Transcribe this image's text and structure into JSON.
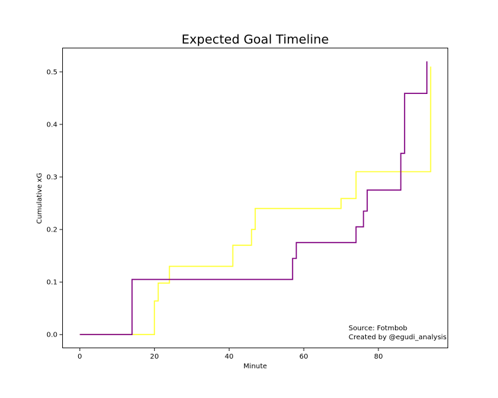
{
  "chart_data": {
    "type": "line",
    "step": "post",
    "title": "Expected Goal Timeline",
    "xlabel": "Minute",
    "ylabel": "Cumulative xG",
    "xlim": [
      -4.7,
      98.7
    ],
    "ylim": [
      -0.026,
      0.546
    ],
    "xticks": [
      0,
      20,
      40,
      60,
      80
    ],
    "yticks": [
      0.0,
      0.1,
      0.2,
      0.3,
      0.4,
      0.5
    ],
    "ytick_labels": [
      "0.0",
      "0.1",
      "0.2",
      "0.3",
      "0.4",
      "0.5"
    ],
    "grid": false,
    "legend": "none",
    "series": [
      {
        "color": "#ffff33",
        "x": [
          0,
          20,
          21,
          24,
          41,
          46,
          47,
          70,
          74,
          94,
          94
        ],
        "y": [
          0.0,
          0.064,
          0.098,
          0.13,
          0.17,
          0.2,
          0.24,
          0.259,
          0.31,
          0.31,
          0.51
        ]
      },
      {
        "color": "#800080",
        "x": [
          0,
          14,
          57,
          58,
          74,
          76,
          77,
          86,
          87,
          93,
          93
        ],
        "y": [
          0.0,
          0.105,
          0.145,
          0.175,
          0.205,
          0.235,
          0.275,
          0.345,
          0.459,
          0.459,
          0.52
        ]
      }
    ],
    "annotations": [
      "Source: Fotmbob",
      "Created by @egudi_analysis"
    ]
  }
}
